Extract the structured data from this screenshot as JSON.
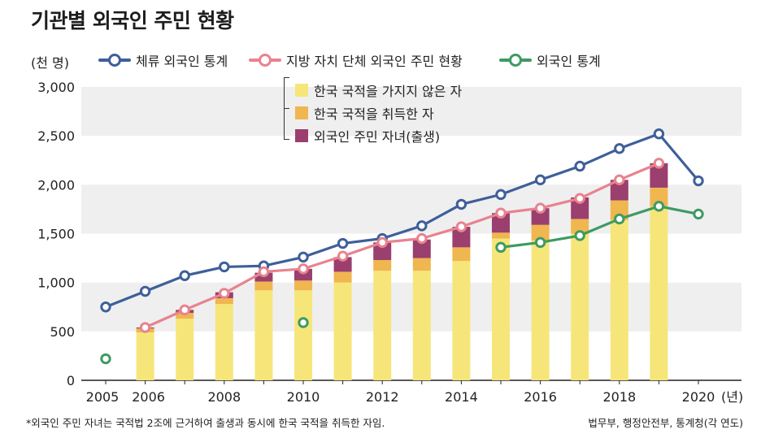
{
  "title": "기관별 외국인 주민 현황",
  "unit_label": "(천 명)",
  "legend": {
    "line1": "체류 외국인 통계",
    "line2": "지방 자치 단체 외국인 주민 현황",
    "line3": "외국인 통계",
    "stack1": "한국 국적을 가지지 않은 자",
    "stack2": "한국 국적을 취득한 자",
    "stack3": "외국인 주민 자녀(출생)"
  },
  "colors": {
    "stay_line": "#3e5f9a",
    "local_line": "#e8838f",
    "stat_line": "#3f9a63",
    "nonkorean": "#f6e67a",
    "naturalized": "#f0b64f",
    "children": "#9a3f6e",
    "band": "#efefef"
  },
  "footnote": "*외국인 주민 자녀는 국적법 2조에 근거하여 출생과 동시에 한국 국적을 취득한 자임.",
  "source": "법무부, 행정안전부, 통계청(각 연도)",
  "chart_data": {
    "type": "bar",
    "ylim": [
      0,
      3000
    ],
    "yticks": [
      "0",
      "500",
      "1,000",
      "1,500",
      "2,000",
      "2,500",
      "3,000"
    ],
    "xtick_labels": [
      "2005",
      "2006",
      "2008",
      "2010",
      "2012",
      "2014",
      "2016",
      "2018",
      "2020"
    ],
    "x_unit": "(년)",
    "stacked_bars": {
      "years": [
        2006,
        2007,
        2008,
        2009,
        2010,
        2011,
        2012,
        2013,
        2014,
        2015,
        2016,
        2017,
        2018,
        2019
      ],
      "series": [
        {
          "name": "한국 국적을 가지지 않은 자",
          "values": [
            490,
            630,
            780,
            920,
            920,
            1000,
            1120,
            1120,
            1220,
            1450,
            1430,
            1500,
            1640,
            1780
          ]
        },
        {
          "name": "한국 국적을 취득한 자",
          "values": [
            40,
            60,
            60,
            90,
            100,
            110,
            110,
            130,
            140,
            60,
            160,
            150,
            200,
            190
          ]
        },
        {
          "name": "외국인 주민 자녀(출생)",
          "values": [
            10,
            30,
            60,
            90,
            120,
            150,
            180,
            190,
            210,
            200,
            170,
            220,
            210,
            250
          ]
        }
      ]
    },
    "lines": [
      {
        "name": "체류 외국인 통계",
        "x": [
          2005,
          2006,
          2007,
          2008,
          2009,
          2010,
          2011,
          2012,
          2013,
          2014,
          2015,
          2016,
          2017,
          2018,
          2019,
          2020
        ],
        "y": [
          750,
          910,
          1070,
          1160,
          1170,
          1260,
          1400,
          1450,
          1580,
          1800,
          1900,
          2050,
          2190,
          2370,
          2520,
          2040
        ]
      },
      {
        "name": "지방 자치 단체 외국인 주민 현황",
        "x": [
          2006,
          2007,
          2008,
          2009,
          2010,
          2011,
          2012,
          2013,
          2014,
          2015,
          2016,
          2017,
          2018,
          2019
        ],
        "y": [
          540,
          720,
          890,
          1110,
          1140,
          1270,
          1410,
          1450,
          1570,
          1710,
          1760,
          1860,
          2050,
          2220
        ]
      },
      {
        "name": "외국인 통계",
        "x": [
          2005,
          2010,
          2015,
          2016,
          2017,
          2018,
          2019,
          2020
        ],
        "y": [
          220,
          590,
          1360,
          1410,
          1480,
          1650,
          1780,
          1700
        ]
      }
    ]
  }
}
